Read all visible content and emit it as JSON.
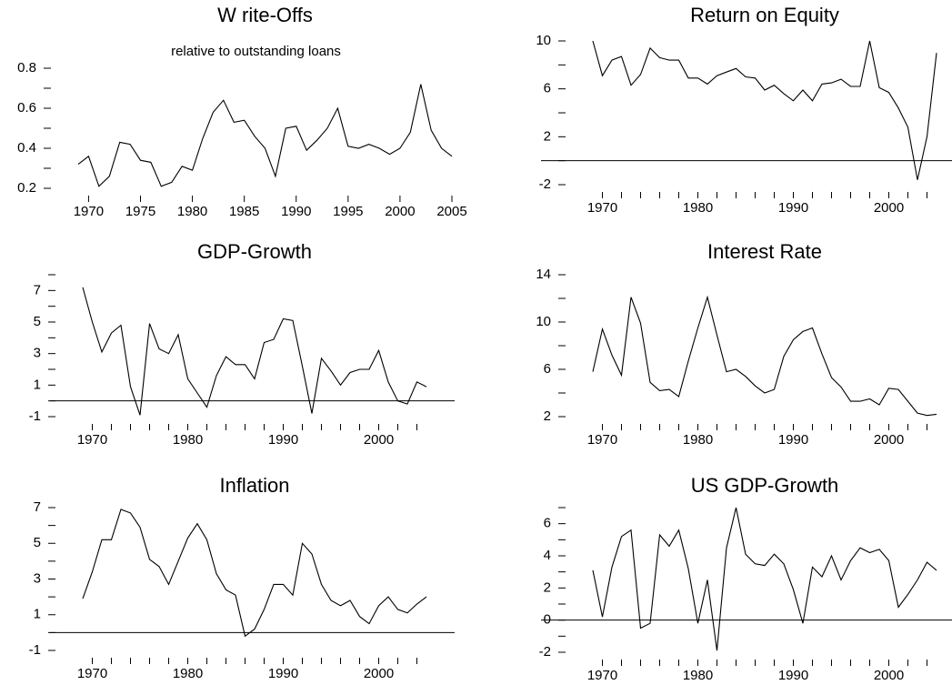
{
  "chart_data": [
    {
      "type": "line",
      "title": "W rite-Offs",
      "subtitle": "relative to outstanding loans",
      "color": "#000000",
      "x": [
        1969,
        1970,
        1971,
        1972,
        1973,
        1974,
        1975,
        1976,
        1977,
        1978,
        1979,
        1980,
        1981,
        1982,
        1983,
        1984,
        1985,
        1986,
        1987,
        1988,
        1989,
        1990,
        1991,
        1992,
        1993,
        1994,
        1995,
        1996,
        1997,
        1998,
        1999,
        2000,
        2001,
        2002,
        2003,
        2004,
        2005
      ],
      "values": [
        0.32,
        0.36,
        0.21,
        0.26,
        0.43,
        0.42,
        0.34,
        0.33,
        0.21,
        0.23,
        0.31,
        0.29,
        0.45,
        0.58,
        0.64,
        0.53,
        0.54,
        0.46,
        0.4,
        0.26,
        0.5,
        0.51,
        0.39,
        0.44,
        0.5,
        0.6,
        0.41,
        0.4,
        0.42,
        0.4,
        0.37,
        0.4,
        0.48,
        0.72,
        0.49,
        0.4,
        0.36
      ],
      "xlim": [
        1969,
        2005
      ],
      "ylim": [
        0.2,
        0.8
      ],
      "xticks": [
        1970,
        1975,
        1980,
        1985,
        1990,
        1995,
        2000,
        2005
      ],
      "yticks": [
        0.2,
        0.4,
        0.6,
        0.8
      ],
      "yminor": [
        0.3,
        0.5,
        0.7
      ]
    },
    {
      "type": "line",
      "title": "Return on Equity",
      "color": "#000000",
      "x": [
        1969,
        1970,
        1971,
        1972,
        1973,
        1974,
        1975,
        1976,
        1977,
        1978,
        1979,
        1980,
        1981,
        1982,
        1983,
        1984,
        1985,
        1986,
        1987,
        1988,
        1989,
        1990,
        1991,
        1992,
        1993,
        1994,
        1995,
        1996,
        1997,
        1998,
        1999,
        2000,
        2001,
        2002,
        2003,
        2004,
        2005
      ],
      "values": [
        10,
        7.1,
        8.4,
        8.7,
        6.3,
        7.2,
        9.4,
        8.6,
        8.4,
        8.4,
        6.9,
        6.9,
        6.4,
        7.1,
        7.4,
        7.7,
        7.0,
        6.9,
        5.9,
        6.3,
        5.6,
        5.0,
        5.9,
        5.0,
        6.4,
        6.5,
        6.8,
        6.2,
        6.2,
        10.0,
        6.1,
        5.7,
        4.4,
        2.8,
        -1.6,
        2.0,
        9.0
      ],
      "xlim": [
        1969,
        2005
      ],
      "ylim": [
        -2,
        10
      ],
      "xticks": [
        1970,
        1980,
        1990,
        2000
      ],
      "xminor": [
        1972,
        1974,
        1976,
        1978,
        1982,
        1984,
        1986,
        1988,
        1992,
        1994,
        1996,
        1998,
        2002,
        2004
      ],
      "yticks": [
        -2,
        2,
        6,
        10
      ],
      "yminor": [
        0,
        4,
        8
      ],
      "hline": 0
    },
    {
      "type": "line",
      "title": "GDP-Growth",
      "color": "#000000",
      "x": [
        1969,
        1970,
        1971,
        1972,
        1973,
        1974,
        1975,
        1976,
        1977,
        1978,
        1979,
        1980,
        1981,
        1982,
        1983,
        1984,
        1985,
        1986,
        1987,
        1988,
        1989,
        1990,
        1991,
        1992,
        1993,
        1994,
        1995,
        1996,
        1997,
        1998,
        1999,
        2000,
        2001,
        2002,
        2003,
        2004,
        2005
      ],
      "values": [
        7.2,
        5.0,
        3.1,
        4.3,
        4.8,
        0.9,
        -0.9,
        4.9,
        3.3,
        3.0,
        4.2,
        1.4,
        0.5,
        -0.4,
        1.6,
        2.8,
        2.3,
        2.3,
        1.4,
        3.7,
        3.9,
        5.2,
        5.1,
        2.2,
        -0.8,
        2.7,
        1.9,
        1.0,
        1.8,
        2.0,
        2.0,
        3.2,
        1.2,
        0.0,
        -0.2,
        1.2,
        0.9
      ],
      "xlim": [
        1969,
        2005
      ],
      "ylim": [
        -1,
        8
      ],
      "xticks": [
        1970,
        1980,
        1990,
        2000
      ],
      "xminor": [
        1972,
        1974,
        1976,
        1978,
        1982,
        1984,
        1986,
        1988,
        1992,
        1994,
        1996,
        1998,
        2002,
        2004
      ],
      "yticks": [
        -1,
        1,
        3,
        5,
        7
      ],
      "yminor": [
        0,
        2,
        4,
        6,
        8
      ],
      "hline": 0
    },
    {
      "type": "line",
      "title": "Interest Rate",
      "color": "#000000",
      "x": [
        1969,
        1970,
        1971,
        1972,
        1973,
        1974,
        1975,
        1976,
        1977,
        1978,
        1979,
        1980,
        1981,
        1982,
        1983,
        1984,
        1985,
        1986,
        1987,
        1988,
        1989,
        1990,
        1991,
        1992,
        1993,
        1994,
        1995,
        1996,
        1997,
        1998,
        1999,
        2000,
        2001,
        2002,
        2003,
        2004,
        2005
      ],
      "values": [
        5.8,
        9.4,
        7.2,
        5.5,
        12.1,
        9.9,
        4.9,
        4.2,
        4.3,
        3.7,
        6.7,
        9.5,
        12.1,
        8.9,
        5.8,
        6.0,
        5.4,
        4.6,
        4.0,
        4.3,
        7.1,
        8.5,
        9.2,
        9.5,
        7.3,
        5.3,
        4.5,
        3.3,
        3.3,
        3.5,
        3.0,
        4.4,
        4.3,
        3.3,
        2.3,
        2.1,
        2.2
      ],
      "xlim": [
        1969,
        2005
      ],
      "ylim": [
        2,
        14
      ],
      "xticks": [
        1970,
        1980,
        1990,
        2000
      ],
      "xminor": [
        1972,
        1974,
        1976,
        1978,
        1982,
        1984,
        1986,
        1988,
        1992,
        1994,
        1996,
        1998,
        2002,
        2004
      ],
      "yticks": [
        2,
        6,
        10,
        14
      ],
      "yminor": [
        4,
        8,
        12
      ]
    },
    {
      "type": "line",
      "title": "Inflation",
      "color": "#000000",
      "x": [
        1969,
        1970,
        1971,
        1972,
        1973,
        1974,
        1975,
        1976,
        1977,
        1978,
        1979,
        1980,
        1981,
        1982,
        1983,
        1984,
        1985,
        1986,
        1987,
        1988,
        1989,
        1990,
        1991,
        1992,
        1993,
        1994,
        1995,
        1996,
        1997,
        1998,
        1999,
        2000,
        2001,
        2002,
        2003,
        2004,
        2005
      ],
      "values": [
        1.9,
        3.4,
        5.2,
        5.2,
        6.9,
        6.7,
        5.9,
        4.1,
        3.7,
        2.7,
        4.0,
        5.3,
        6.1,
        5.2,
        3.3,
        2.4,
        2.1,
        -0.2,
        0.2,
        1.3,
        2.7,
        2.7,
        2.1,
        5.0,
        4.4,
        2.7,
        1.8,
        1.5,
        1.8,
        0.9,
        0.5,
        1.5,
        2.0,
        1.3,
        1.1,
        1.6,
        2.0
      ],
      "xlim": [
        1969,
        2005
      ],
      "ylim": [
        -1,
        7
      ],
      "xticks": [
        1970,
        1980,
        1990,
        2000
      ],
      "xminor": [
        1972,
        1974,
        1976,
        1978,
        1982,
        1984,
        1986,
        1988,
        1992,
        1994,
        1996,
        1998,
        2002,
        2004
      ],
      "yticks": [
        -1,
        1,
        3,
        5,
        7
      ],
      "yminor": [
        0,
        2,
        4,
        6
      ],
      "hline": 0
    },
    {
      "type": "line",
      "title": "US GDP-Growth",
      "color": "#000000",
      "x": [
        1969,
        1970,
        1971,
        1972,
        1973,
        1974,
        1975,
        1976,
        1977,
        1978,
        1979,
        1980,
        1981,
        1982,
        1983,
        1984,
        1985,
        1986,
        1987,
        1988,
        1989,
        1990,
        1991,
        1992,
        1993,
        1994,
        1995,
        1996,
        1997,
        1998,
        1999,
        2000,
        2001,
        2002,
        2003,
        2004,
        2005
      ],
      "values": [
        3.1,
        0.2,
        3.3,
        5.2,
        5.6,
        -0.5,
        -0.2,
        5.3,
        4.6,
        5.6,
        3.2,
        -0.2,
        2.5,
        -1.9,
        4.5,
        7.0,
        4.1,
        3.5,
        3.4,
        4.1,
        3.5,
        1.9,
        -0.2,
        3.3,
        2.7,
        4.0,
        2.5,
        3.7,
        4.5,
        4.2,
        4.4,
        3.7,
        0.8,
        1.6,
        2.5,
        3.6,
        3.1
      ],
      "xlim": [
        1969,
        2005
      ],
      "ylim": [
        -2,
        7
      ],
      "xticks": [
        1970,
        1980,
        1990,
        2000
      ],
      "xminor": [
        1972,
        1974,
        1976,
        1978,
        1982,
        1984,
        1986,
        1988,
        1992,
        1994,
        1996,
        1998,
        2002,
        2004
      ],
      "yticks": [
        -2,
        0,
        2,
        4,
        6
      ],
      "yminor": [
        -1,
        1,
        3,
        5,
        7
      ],
      "hline": 0
    }
  ]
}
